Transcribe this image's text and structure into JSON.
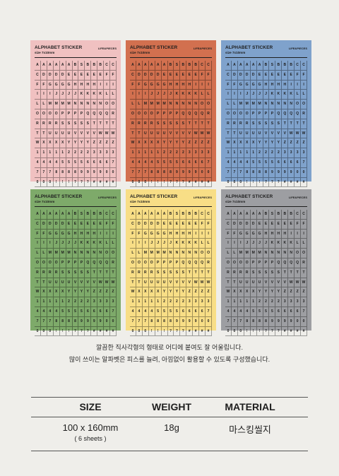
{
  "sheets": [
    {
      "title": "ALPHABET STICKER",
      "size": "size 7x10mm",
      "brand": "LIFE&PIECES",
      "color": "#f0c1c1"
    },
    {
      "title": "ALPHABET STICKER",
      "size": "size 7x10mm",
      "brand": "LIFE&PIECES",
      "color": "#d2704f"
    },
    {
      "title": "ALPHABET STICKER",
      "size": "size 7x10mm",
      "brand": "LIFE&PIECES",
      "color": "#7fa2cc"
    },
    {
      "title": "ALPHABET STICKER",
      "size": "size 7x10mm",
      "brand": "LIFE&PIECES",
      "color": "#7eaa6a"
    },
    {
      "title": "ALPHABET STICKER",
      "size": "size 7x10mm",
      "brand": "LIFE&PIECES",
      "color": "#f8de86"
    },
    {
      "title": "ALPHABET STICKER",
      "size": "size 7x10mm",
      "brand": "LIFE&PIECES",
      "color": "#9d9ea2"
    }
  ],
  "sticker_rows": [
    "AAAAAABSBBBCCC",
    "CDDDDEEEEEEFF",
    "FFGGGGHHHHIII",
    "IIIJJJJKKKKLL",
    "LLMMMMNNNNNOO",
    "OOOOPPPPQQQQR",
    "RRRRSSSSSTTTT",
    "TTUUUUVVVVWWW",
    "WXXXXYYYYZZZZ",
    "1111122223333",
    "4444555566667",
    "7778888999900",
    "000!!!???####"
  ],
  "description": {
    "line1": "깔끔한 직사각형의 형태로 어디에 붙여도 잘 어울립니다.",
    "line2": "많이 쓰이는 알파벳은 피스를 늘려, 아낌없이 활용할 수 있도록 구성했습니다."
  },
  "specs": {
    "size_label": "SIZE",
    "weight_label": "WEIGHT",
    "material_label": "MATERIAL",
    "size_value": "100 x 160mm",
    "size_note": "( 6 sheets )",
    "weight_value": "18g",
    "material_value": "마스킹씰지"
  }
}
